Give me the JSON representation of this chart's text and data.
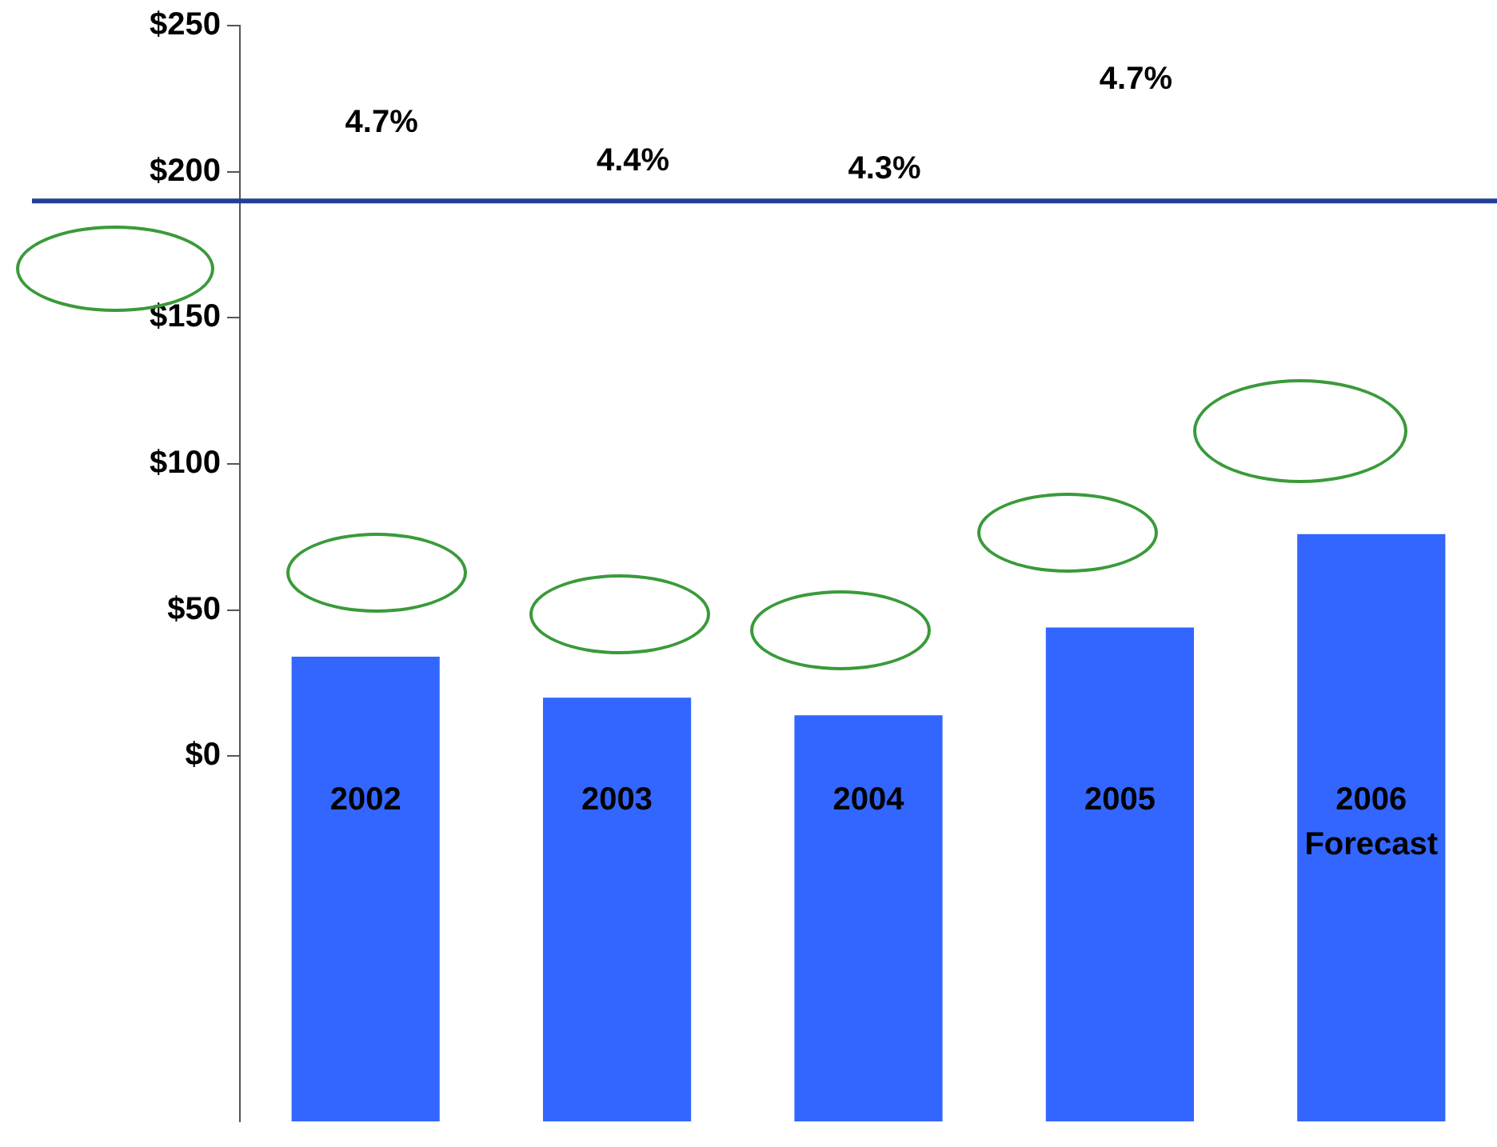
{
  "chart_data": {
    "type": "bar",
    "categories": [
      "2002",
      "2003",
      "2004",
      "2005",
      "2006\nForecast"
    ],
    "base": [
      -125,
      -125,
      -125,
      -125,
      -125
    ],
    "values": [
      159,
      145,
      139,
      169,
      201
    ],
    "color": "#3366ff",
    "ylim": [
      -125,
      250
    ],
    "yticks": [
      {
        "value": 0,
        "label": "$0"
      },
      {
        "value": 50,
        "label": "$50"
      },
      {
        "value": 100,
        "label": "$100"
      },
      {
        "value": 150,
        "label": "$150"
      },
      {
        "value": 200,
        "label": "$200"
      },
      {
        "value": 250,
        "label": "$250"
      }
    ],
    "ref_lines": [
      {
        "axis": "y",
        "value": 190,
        "color": "#1f3f99"
      }
    ],
    "annotations": [
      "4.7%",
      "4.4%",
      "4.3%",
      "4.7%"
    ],
    "grid": false,
    "legend": false
  }
}
